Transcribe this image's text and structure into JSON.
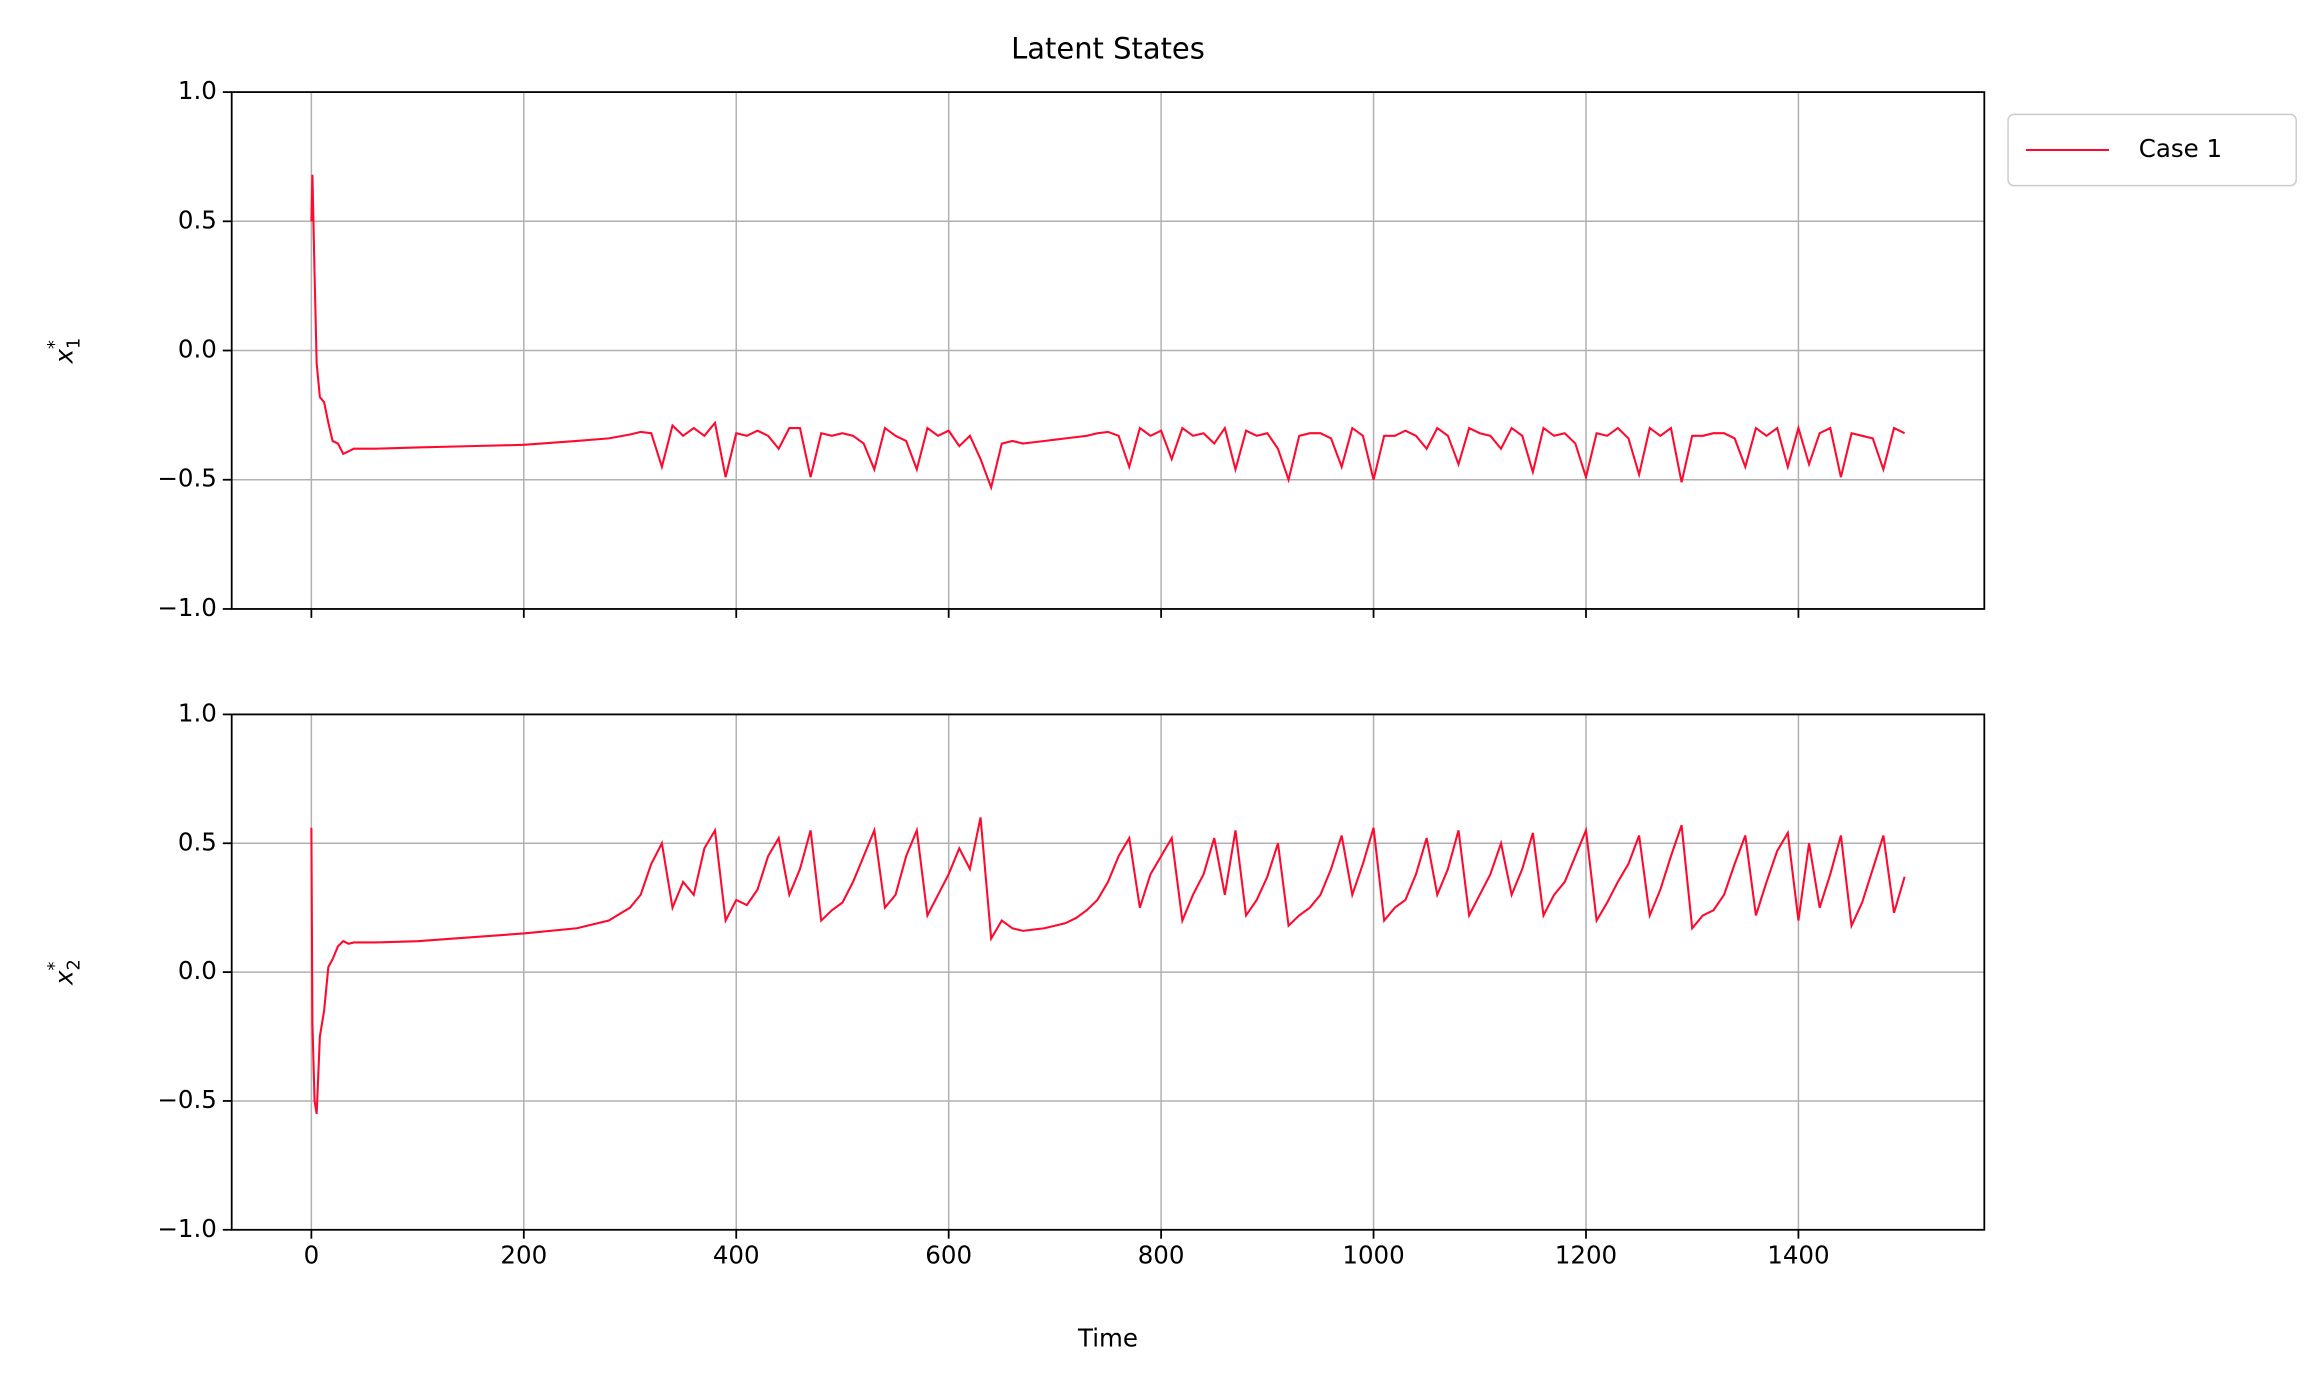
{
  "chart_data": [
    {
      "type": "line",
      "title": "Latent States",
      "ylabel": {
        "base": "x",
        "sup": "*",
        "sub": "1"
      },
      "x": [
        0,
        1,
        3,
        5,
        8,
        12,
        16,
        20,
        25,
        30,
        35,
        40,
        60,
        100,
        150,
        200,
        250,
        280,
        300,
        310,
        320,
        330,
        340,
        350,
        360,
        370,
        380,
        390,
        400,
        410,
        420,
        430,
        440,
        450,
        460,
        470,
        480,
        490,
        500,
        510,
        520,
        530,
        540,
        550,
        560,
        570,
        580,
        590,
        600,
        610,
        620,
        630,
        640,
        650,
        660,
        670,
        680,
        690,
        700,
        710,
        720,
        730,
        740,
        750,
        760,
        770,
        780,
        790,
        800,
        810,
        820,
        830,
        840,
        850,
        860,
        870,
        880,
        890,
        900,
        910,
        920,
        930,
        940,
        950,
        960,
        970,
        980,
        990,
        1000,
        1010,
        1020,
        1030,
        1040,
        1050,
        1060,
        1070,
        1080,
        1090,
        1100,
        1110,
        1120,
        1130,
        1140,
        1150,
        1160,
        1170,
        1180,
        1190,
        1200,
        1210,
        1220,
        1230,
        1240,
        1250,
        1260,
        1270,
        1280,
        1290,
        1300,
        1310,
        1320,
        1330,
        1340,
        1350,
        1360,
        1370,
        1380,
        1390,
        1400,
        1410,
        1420,
        1430,
        1440,
        1450,
        1460,
        1470,
        1480,
        1490,
        1500
      ],
      "series": [
        {
          "name": "Case 1",
          "color": "#ff0a2f",
          "values": [
            0.5,
            0.68,
            0.3,
            -0.05,
            -0.18,
            -0.2,
            -0.28,
            -0.35,
            -0.36,
            -0.4,
            -0.39,
            -0.38,
            -0.38,
            -0.375,
            -0.37,
            -0.365,
            -0.35,
            -0.34,
            -0.325,
            -0.315,
            -0.32,
            -0.45,
            -0.29,
            -0.33,
            -0.3,
            -0.33,
            -0.28,
            -0.49,
            -0.32,
            -0.33,
            -0.31,
            -0.33,
            -0.38,
            -0.3,
            -0.3,
            -0.49,
            -0.32,
            -0.33,
            -0.32,
            -0.33,
            -0.36,
            -0.46,
            -0.3,
            -0.33,
            -0.35,
            -0.46,
            -0.3,
            -0.33,
            -0.31,
            -0.37,
            -0.33,
            -0.42,
            -0.53,
            -0.36,
            -0.35,
            -0.36,
            -0.355,
            -0.35,
            -0.345,
            -0.34,
            -0.335,
            -0.33,
            -0.32,
            -0.315,
            -0.33,
            -0.45,
            -0.3,
            -0.33,
            -0.31,
            -0.42,
            -0.3,
            -0.33,
            -0.32,
            -0.36,
            -0.3,
            -0.46,
            -0.31,
            -0.33,
            -0.32,
            -0.38,
            -0.5,
            -0.33,
            -0.32,
            -0.32,
            -0.34,
            -0.45,
            -0.3,
            -0.33,
            -0.5,
            -0.33,
            -0.33,
            -0.31,
            -0.33,
            -0.38,
            -0.3,
            -0.33,
            -0.44,
            -0.3,
            -0.32,
            -0.33,
            -0.38,
            -0.3,
            -0.33,
            -0.47,
            -0.3,
            -0.33,
            -0.32,
            -0.36,
            -0.49,
            -0.32,
            -0.33,
            -0.3,
            -0.34,
            -0.48,
            -0.3,
            -0.33,
            -0.3,
            -0.51,
            -0.33,
            -0.33,
            -0.32,
            -0.32,
            -0.34,
            -0.45,
            -0.3,
            -0.33,
            -0.3,
            -0.45,
            -0.3,
            -0.44,
            -0.32,
            -0.3,
            -0.49,
            -0.32,
            -0.33,
            -0.34,
            -0.46,
            -0.3,
            -0.32
          ]
        }
      ],
      "xlim": [
        -75,
        1575
      ],
      "xticks": [
        0,
        200,
        400,
        600,
        800,
        1000,
        1200,
        1400
      ],
      "xtick_labels": false,
      "ylim": [
        -1,
        1
      ],
      "yticks": [
        {
          "value": -1,
          "label": "−1.0"
        },
        {
          "value": -0.5,
          "label": "−0.5"
        },
        {
          "value": 0,
          "label": "0.0"
        },
        {
          "value": 0.5,
          "label": "0.5"
        },
        {
          "value": 1,
          "label": "1.0"
        }
      ],
      "grid": true,
      "legend": "outside upper right"
    },
    {
      "type": "line",
      "xlabel": "Time",
      "ylabel": {
        "base": "x",
        "sup": "*",
        "sub": "2"
      },
      "x": [
        0,
        1,
        3,
        5,
        8,
        12,
        16,
        20,
        25,
        30,
        35,
        40,
        60,
        100,
        150,
        200,
        250,
        280,
        300,
        310,
        320,
        330,
        340,
        350,
        360,
        370,
        380,
        390,
        400,
        410,
        420,
        430,
        440,
        450,
        460,
        470,
        480,
        490,
        500,
        510,
        520,
        530,
        540,
        550,
        560,
        570,
        580,
        590,
        600,
        610,
        620,
        630,
        640,
        650,
        660,
        670,
        680,
        690,
        700,
        710,
        720,
        730,
        740,
        750,
        760,
        770,
        780,
        790,
        800,
        810,
        820,
        830,
        840,
        850,
        860,
        870,
        880,
        890,
        900,
        910,
        920,
        930,
        940,
        950,
        960,
        970,
        980,
        990,
        1000,
        1010,
        1020,
        1030,
        1040,
        1050,
        1060,
        1070,
        1080,
        1090,
        1100,
        1110,
        1120,
        1130,
        1140,
        1150,
        1160,
        1170,
        1180,
        1190,
        1200,
        1210,
        1220,
        1230,
        1240,
        1250,
        1260,
        1270,
        1280,
        1290,
        1300,
        1310,
        1320,
        1330,
        1340,
        1350,
        1360,
        1370,
        1380,
        1390,
        1400,
        1410,
        1420,
        1430,
        1440,
        1450,
        1460,
        1470,
        1480,
        1490,
        1500
      ],
      "series": [
        {
          "color": "#ff0a2f",
          "values": [
            0.56,
            -0.2,
            -0.5,
            -0.55,
            -0.25,
            -0.15,
            0.02,
            0.05,
            0.1,
            0.12,
            0.11,
            0.115,
            0.115,
            0.12,
            0.135,
            0.15,
            0.17,
            0.2,
            0.25,
            0.3,
            0.42,
            0.5,
            0.25,
            0.35,
            0.3,
            0.48,
            0.55,
            0.2,
            0.28,
            0.26,
            0.32,
            0.45,
            0.52,
            0.3,
            0.4,
            0.55,
            0.2,
            0.24,
            0.27,
            0.35,
            0.45,
            0.55,
            0.25,
            0.3,
            0.45,
            0.55,
            0.22,
            0.3,
            0.38,
            0.48,
            0.4,
            0.6,
            0.13,
            0.2,
            0.17,
            0.16,
            0.165,
            0.17,
            0.18,
            0.19,
            0.21,
            0.24,
            0.28,
            0.35,
            0.45,
            0.52,
            0.25,
            0.38,
            0.45,
            0.52,
            0.2,
            0.3,
            0.38,
            0.52,
            0.3,
            0.55,
            0.22,
            0.28,
            0.37,
            0.5,
            0.18,
            0.22,
            0.25,
            0.3,
            0.4,
            0.53,
            0.3,
            0.42,
            0.56,
            0.2,
            0.25,
            0.28,
            0.38,
            0.52,
            0.3,
            0.4,
            0.55,
            0.22,
            0.3,
            0.38,
            0.5,
            0.3,
            0.4,
            0.54,
            0.22,
            0.3,
            0.35,
            0.45,
            0.55,
            0.2,
            0.27,
            0.35,
            0.42,
            0.53,
            0.22,
            0.32,
            0.45,
            0.57,
            0.17,
            0.22,
            0.24,
            0.3,
            0.42,
            0.53,
            0.22,
            0.35,
            0.47,
            0.54,
            0.2,
            0.5,
            0.25,
            0.38,
            0.53,
            0.18,
            0.27,
            0.4,
            0.53,
            0.23,
            0.37
          ]
        }
      ],
      "xlim": [
        -75,
        1575
      ],
      "xticks": [
        0,
        200,
        400,
        600,
        800,
        1000,
        1200,
        1400
      ],
      "ylim": [
        -1,
        1
      ],
      "yticks": [
        {
          "value": -1,
          "label": "−1.0"
        },
        {
          "value": -0.5,
          "label": "−0.5"
        },
        {
          "value": 0,
          "label": "0.0"
        },
        {
          "value": 0.5,
          "label": "0.5"
        },
        {
          "value": 1,
          "label": "1.0"
        }
      ],
      "grid": true
    }
  ]
}
